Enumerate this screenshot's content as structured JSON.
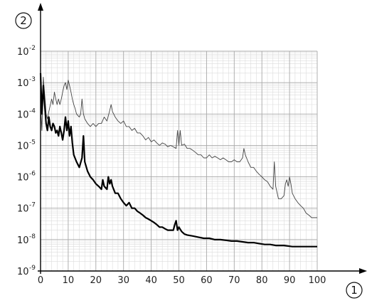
{
  "chart_data": {
    "type": "line",
    "title": "",
    "x_axis_marker": "1",
    "y_axis_marker": "2",
    "xlim": [
      0,
      100
    ],
    "ylim": [
      1e-09,
      0.01
    ],
    "y_scale": "log",
    "grid": true,
    "x_ticks": [
      "0",
      "10",
      "20",
      "30",
      "40",
      "50",
      "60",
      "70",
      "80",
      "90",
      "100"
    ],
    "y_ticks": [
      {
        "base": "10",
        "exp": "-2"
      },
      {
        "base": "10",
        "exp": "-3"
      },
      {
        "base": "10",
        "exp": "-4"
      },
      {
        "base": "10",
        "exp": "-5"
      },
      {
        "base": "10",
        "exp": "-6"
      },
      {
        "base": "10",
        "exp": "-7"
      },
      {
        "base": "10",
        "exp": "-8"
      },
      {
        "base": "10",
        "exp": "-9"
      }
    ],
    "series": [
      {
        "style": "thin",
        "color": "#444444",
        "points": [
          [
            0,
            0.0002
          ],
          [
            0.5,
            3e-05
          ],
          [
            1,
            0.0015
          ],
          [
            1.5,
            0.0004
          ],
          [
            2,
            0.0001
          ],
          [
            2.5,
            7e-05
          ],
          [
            3,
            0.00012
          ],
          [
            4,
            0.0003
          ],
          [
            4.5,
            0.0002
          ],
          [
            5,
            0.0005
          ],
          [
            5.5,
            0.0003
          ],
          [
            6,
            0.0002
          ],
          [
            6.5,
            0.0003
          ],
          [
            7,
            0.0002
          ],
          [
            7.5,
            0.0003
          ],
          [
            8,
            0.0005
          ],
          [
            8.5,
            0.0008
          ],
          [
            9,
            0.001
          ],
          [
            9.5,
            0.0006
          ],
          [
            10,
            0.0012
          ],
          [
            10.5,
            0.0008
          ],
          [
            11,
            0.0005
          ],
          [
            11.5,
            0.0003
          ],
          [
            12,
            0.0002
          ],
          [
            12.5,
            0.00015
          ],
          [
            13,
            0.0001
          ],
          [
            14,
            8e-05
          ],
          [
            14.5,
            0.0001
          ],
          [
            15,
            0.0003
          ],
          [
            15.5,
            0.0001
          ],
          [
            16,
            7e-05
          ],
          [
            17,
            5e-05
          ],
          [
            18,
            4e-05
          ],
          [
            19,
            5e-05
          ],
          [
            20,
            4e-05
          ],
          [
            21,
            5e-05
          ],
          [
            22,
            5e-05
          ],
          [
            23,
            8e-05
          ],
          [
            24,
            6e-05
          ],
          [
            25,
            0.00013
          ],
          [
            25.5,
            0.0002
          ],
          [
            26,
            0.00012
          ],
          [
            27,
            8e-05
          ],
          [
            28,
            6e-05
          ],
          [
            29,
            5e-05
          ],
          [
            30,
            6e-05
          ],
          [
            31,
            4e-05
          ],
          [
            32,
            4e-05
          ],
          [
            33,
            3e-05
          ],
          [
            34,
            3.5e-05
          ],
          [
            35,
            2.5e-05
          ],
          [
            36,
            2.5e-05
          ],
          [
            37,
            2e-05
          ],
          [
            38,
            1.5e-05
          ],
          [
            39,
            1.8e-05
          ],
          [
            40,
            1.3e-05
          ],
          [
            41,
            1.5e-05
          ],
          [
            42,
            1.2e-05
          ],
          [
            43,
            1e-05
          ],
          [
            44,
            1.2e-05
          ],
          [
            45,
            1.1e-05
          ],
          [
            46,
            9e-06
          ],
          [
            47,
            1e-05
          ],
          [
            48,
            9e-06
          ],
          [
            49,
            8e-06
          ],
          [
            49.5,
            3e-05
          ],
          [
            50,
            1e-05
          ],
          [
            50.5,
            3e-05
          ],
          [
            51,
            1e-05
          ],
          [
            52,
            1.1e-05
          ],
          [
            53,
            8e-06
          ],
          [
            54,
            8e-06
          ],
          [
            55,
            7e-06
          ],
          [
            56,
            6e-06
          ],
          [
            57,
            5e-06
          ],
          [
            58,
            5e-06
          ],
          [
            59,
            4e-06
          ],
          [
            60,
            4e-06
          ],
          [
            61,
            5e-06
          ],
          [
            62,
            4e-06
          ],
          [
            63,
            4.5e-06
          ],
          [
            64,
            4e-06
          ],
          [
            65,
            3.5e-06
          ],
          [
            66,
            4e-06
          ],
          [
            67,
            3.5e-06
          ],
          [
            68,
            3e-06
          ],
          [
            69,
            3e-06
          ],
          [
            70,
            3.5e-06
          ],
          [
            71,
            3e-06
          ],
          [
            72,
            3e-06
          ],
          [
            73,
            4e-06
          ],
          [
            73.5,
            8e-06
          ],
          [
            74,
            5e-06
          ],
          [
            75,
            3e-06
          ],
          [
            76,
            2e-06
          ],
          [
            77,
            2e-06
          ],
          [
            78,
            1.5e-06
          ],
          [
            79,
            1.2e-06
          ],
          [
            80,
            1e-06
          ],
          [
            81,
            8e-07
          ],
          [
            82,
            7e-07
          ],
          [
            83,
            5e-07
          ],
          [
            84,
            4e-07
          ],
          [
            84.5,
            3e-06
          ],
          [
            85,
            5e-07
          ],
          [
            86,
            2e-07
          ],
          [
            87,
            2e-07
          ],
          [
            88,
            2.5e-07
          ],
          [
            88.5,
            6e-07
          ],
          [
            89,
            8e-07
          ],
          [
            89.5,
            5e-07
          ],
          [
            90,
            1e-06
          ],
          [
            90.5,
            6e-07
          ],
          [
            91,
            3e-07
          ],
          [
            92,
            2e-07
          ],
          [
            93,
            1.5e-07
          ],
          [
            94,
            1.2e-07
          ],
          [
            95,
            1e-07
          ],
          [
            96,
            7e-08
          ],
          [
            97,
            6e-08
          ],
          [
            98,
            5e-08
          ],
          [
            99,
            5e-08
          ],
          [
            100,
            5e-08
          ]
        ]
      },
      {
        "style": "thick",
        "color": "#000000",
        "points": [
          [
            0,
            0.002
          ],
          [
            0.5,
            0.0001
          ],
          [
            1,
            0.0008
          ],
          [
            1.5,
            0.0002
          ],
          [
            2,
            5e-05
          ],
          [
            2.5,
            3e-05
          ],
          [
            3,
            8e-05
          ],
          [
            3.5,
            4e-05
          ],
          [
            4,
            3e-05
          ],
          [
            4.5,
            5e-05
          ],
          [
            5,
            4e-05
          ],
          [
            5.5,
            2.5e-05
          ],
          [
            6,
            3e-05
          ],
          [
            6.5,
            2e-05
          ],
          [
            7,
            4e-05
          ],
          [
            7.5,
            2.5e-05
          ],
          [
            8,
            1.5e-05
          ],
          [
            8.5,
            3e-05
          ],
          [
            9,
            8e-05
          ],
          [
            9.5,
            3e-05
          ],
          [
            10,
            6e-05
          ],
          [
            10.5,
            2e-05
          ],
          [
            11,
            4e-05
          ],
          [
            11.5,
            1.2e-05
          ],
          [
            12,
            5e-06
          ],
          [
            13,
            3e-06
          ],
          [
            14,
            2e-06
          ],
          [
            15,
            4e-06
          ],
          [
            15.5,
            2e-05
          ],
          [
            16,
            3e-06
          ],
          [
            17,
            1.5e-06
          ],
          [
            18,
            1e-06
          ],
          [
            19,
            8e-07
          ],
          [
            20,
            6e-07
          ],
          [
            21,
            5e-07
          ],
          [
            22,
            4e-07
          ],
          [
            22.5,
            8e-07
          ],
          [
            23,
            5e-07
          ],
          [
            24,
            4e-07
          ],
          [
            24.5,
            1e-06
          ],
          [
            25,
            6e-07
          ],
          [
            25.5,
            8e-07
          ],
          [
            26,
            5e-07
          ],
          [
            27,
            3e-07
          ],
          [
            28,
            3e-07
          ],
          [
            29,
            2e-07
          ],
          [
            30,
            1.5e-07
          ],
          [
            31,
            1.2e-07
          ],
          [
            32,
            1.5e-07
          ],
          [
            33,
            1e-07
          ],
          [
            34,
            1e-07
          ],
          [
            35,
            8e-08
          ],
          [
            36,
            7e-08
          ],
          [
            37,
            6e-08
          ],
          [
            38,
            5e-08
          ],
          [
            39,
            4.5e-08
          ],
          [
            40,
            4e-08
          ],
          [
            41,
            3.5e-08
          ],
          [
            42,
            3e-08
          ],
          [
            43,
            2.5e-08
          ],
          [
            44,
            2.5e-08
          ],
          [
            45,
            2.2e-08
          ],
          [
            46,
            2e-08
          ],
          [
            47,
            2e-08
          ],
          [
            48,
            2e-08
          ],
          [
            48.5,
            3e-08
          ],
          [
            49,
            4e-08
          ],
          [
            49.5,
            2e-08
          ],
          [
            50,
            2.5e-08
          ],
          [
            51,
            1.8e-08
          ],
          [
            52,
            1.5e-08
          ],
          [
            53,
            1.4e-08
          ],
          [
            55,
            1.3e-08
          ],
          [
            57,
            1.2e-08
          ],
          [
            59,
            1.1e-08
          ],
          [
            61,
            1.1e-08
          ],
          [
            63,
            1e-08
          ],
          [
            65,
            1e-08
          ],
          [
            67,
            9.5e-09
          ],
          [
            69,
            9e-09
          ],
          [
            71,
            9e-09
          ],
          [
            73,
            8.5e-09
          ],
          [
            75,
            8e-09
          ],
          [
            77,
            8e-09
          ],
          [
            79,
            7.5e-09
          ],
          [
            81,
            7e-09
          ],
          [
            83,
            7e-09
          ],
          [
            85,
            6.5e-09
          ],
          [
            88,
            6.5e-09
          ],
          [
            91,
            6e-09
          ],
          [
            94,
            6e-09
          ],
          [
            97,
            6e-09
          ],
          [
            100,
            6e-09
          ]
        ]
      }
    ]
  }
}
